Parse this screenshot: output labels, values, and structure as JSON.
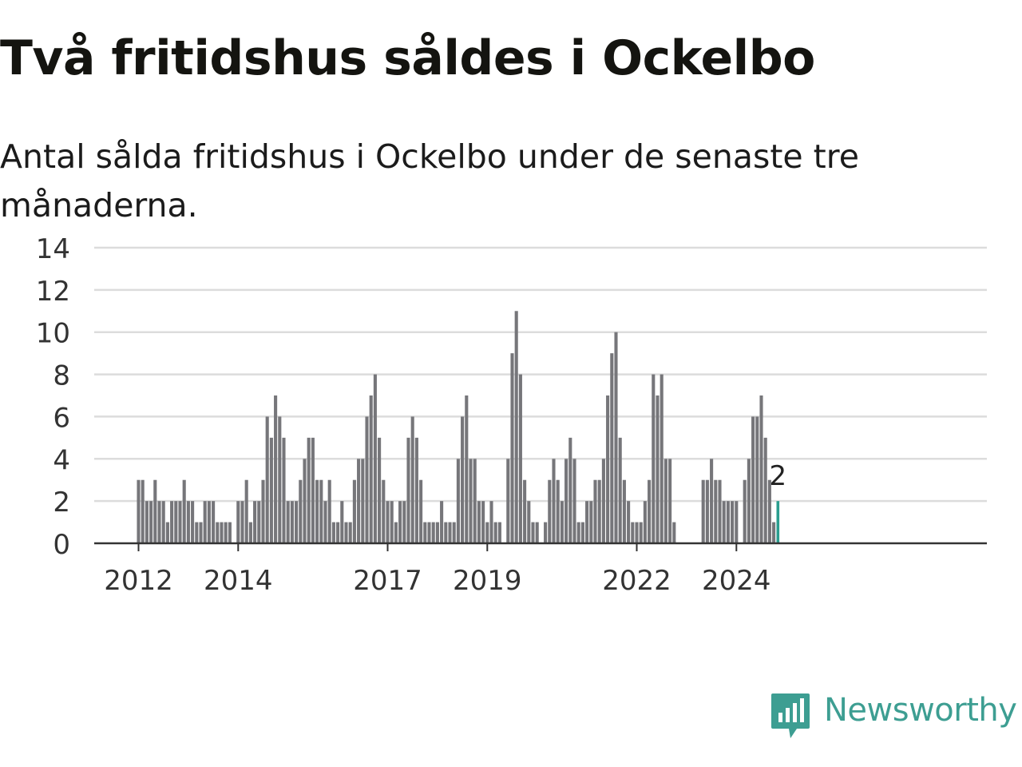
{
  "title": "Två fritidshus såldes i Ockelbo",
  "subtitle": "Antal sålda fritidshus i Ockelbo under de senaste tre månaderna.",
  "brand": {
    "name": "Newsworthy",
    "icon": "newsworthy-logo-icon",
    "color": "#3d9e92"
  },
  "colors": {
    "bar": "#76767a",
    "highlight": "#2a9d8f",
    "grid": "#dcdcdc",
    "axis": "#333333"
  },
  "chart_data": {
    "type": "bar",
    "ylim": [
      0,
      14
    ],
    "yticks": [
      "0",
      "2",
      "4",
      "6",
      "8",
      "10",
      "12",
      "14"
    ],
    "grid": true,
    "xticks": [
      {
        "label": "2012",
        "index": 0
      },
      {
        "label": "2014",
        "index": 24
      },
      {
        "label": "2017",
        "index": 60
      },
      {
        "label": "2019",
        "index": 84
      },
      {
        "label": "2022",
        "index": 120
      },
      {
        "label": "2024",
        "index": 144
      }
    ],
    "first_period": "2012-01",
    "values": [
      3,
      3,
      2,
      2,
      3,
      2,
      2,
      1,
      2,
      2,
      2,
      3,
      2,
      2,
      1,
      1,
      2,
      2,
      2,
      1,
      1,
      1,
      1,
      0,
      2,
      2,
      3,
      1,
      2,
      2,
      3,
      6,
      5,
      7,
      6,
      5,
      2,
      2,
      2,
      3,
      4,
      5,
      5,
      3,
      3,
      2,
      3,
      1,
      1,
      2,
      1,
      1,
      3,
      4,
      4,
      6,
      7,
      8,
      5,
      3,
      2,
      2,
      1,
      2,
      2,
      5,
      6,
      5,
      3,
      1,
      1,
      1,
      1,
      2,
      1,
      1,
      1,
      4,
      6,
      7,
      4,
      4,
      2,
      2,
      1,
      2,
      1,
      1,
      0,
      4,
      9,
      11,
      8,
      3,
      2,
      1,
      1,
      0,
      1,
      3,
      4,
      3,
      2,
      4,
      5,
      4,
      1,
      1,
      2,
      2,
      3,
      3,
      4,
      7,
      9,
      10,
      5,
      3,
      2,
      1,
      1,
      1,
      2,
      3,
      8,
      7,
      8,
      4,
      4,
      1,
      0,
      0,
      0,
      0,
      0,
      0,
      3,
      3,
      4,
      3,
      3,
      2,
      2,
      2,
      2,
      0,
      3,
      4,
      6,
      6,
      7,
      5,
      3,
      1,
      2
    ],
    "highlight_last": true,
    "annotation": "2"
  }
}
